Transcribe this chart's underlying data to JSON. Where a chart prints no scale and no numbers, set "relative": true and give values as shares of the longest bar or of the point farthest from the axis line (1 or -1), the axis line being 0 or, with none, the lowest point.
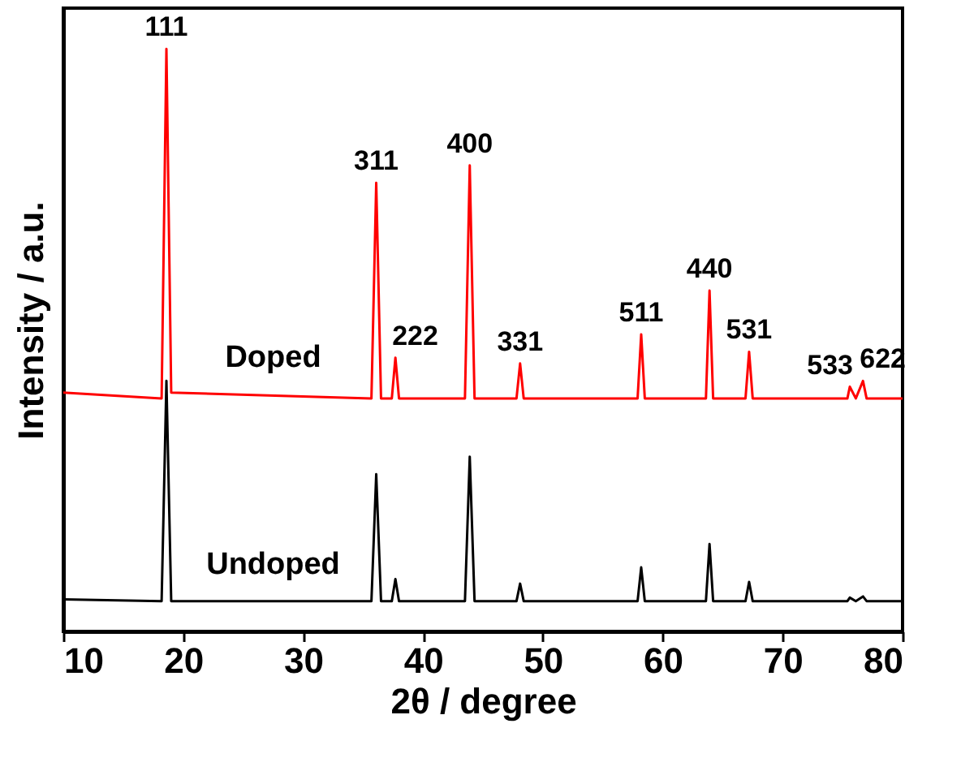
{
  "chart_data": {
    "type": "line",
    "relative": true,
    "xlabel": "2θ / degree",
    "ylabel": "Intensity / a.u.",
    "xlim": [
      10,
      80
    ],
    "xticks": [
      10,
      20,
      30,
      40,
      50,
      60,
      70,
      80
    ],
    "tick_labels": "x",
    "grid": false,
    "marker": "none",
    "line_style": "solid",
    "x": [
      10,
      18.2,
      18.6,
      19.0,
      35.7,
      36.1,
      36.5,
      37.4,
      37.7,
      38.0,
      43.5,
      43.9,
      44.3,
      47.8,
      48.1,
      48.4,
      57.9,
      58.2,
      58.5,
      63.6,
      63.9,
      64.2,
      66.9,
      67.2,
      67.5,
      75.4,
      75.6,
      76.1,
      76.7,
      77.0,
      80
    ],
    "series": [
      {
        "name": "Doped",
        "color": "#ff0000",
        "values": [
          0.41,
          0.4,
          1,
          0.41,
          0.4,
          0.77,
          0.4,
          0.4,
          0.47,
          0.4,
          0.4,
          0.8,
          0.4,
          0.4,
          0.46,
          0.4,
          0.4,
          0.51,
          0.4,
          0.4,
          0.585,
          0.4,
          0.4,
          0.48,
          0.4,
          0.4,
          0.42,
          0.4,
          0.43,
          0.4,
          0.4
        ]
      },
      {
        "name": "Undoped",
        "color": "#000000",
        "values": [
          0.055,
          0.052,
          0.43,
          0.052,
          0.052,
          0.27,
          0.052,
          0.052,
          0.09,
          0.052,
          0.052,
          0.3,
          0.052,
          0.052,
          0.082,
          0.052,
          0.052,
          0.11,
          0.052,
          0.052,
          0.15,
          0.052,
          0.052,
          0.085,
          0.052,
          0.052,
          0.058,
          0.052,
          0.06,
          0.052,
          0.052
        ]
      }
    ],
    "annotations": [
      {
        "text": "111",
        "x": 18.6,
        "y": 1
      },
      {
        "text": "311",
        "x": 36.1,
        "y": 0.77
      },
      {
        "text": "222",
        "x": 37.7,
        "y": 0.47
      },
      {
        "text": "400",
        "x": 43.9,
        "y": 0.8
      },
      {
        "text": "331",
        "x": 48.1,
        "y": 0.46
      },
      {
        "text": "511",
        "x": 58.2,
        "y": 0.51
      },
      {
        "text": "440",
        "x": 63.9,
        "y": 0.585
      },
      {
        "text": "531",
        "x": 67.2,
        "y": 0.48
      },
      {
        "text": "533",
        "x": 75.6,
        "y": 0.42
      },
      {
        "text": "622",
        "x": 76.7,
        "y": 0.43
      }
    ]
  }
}
